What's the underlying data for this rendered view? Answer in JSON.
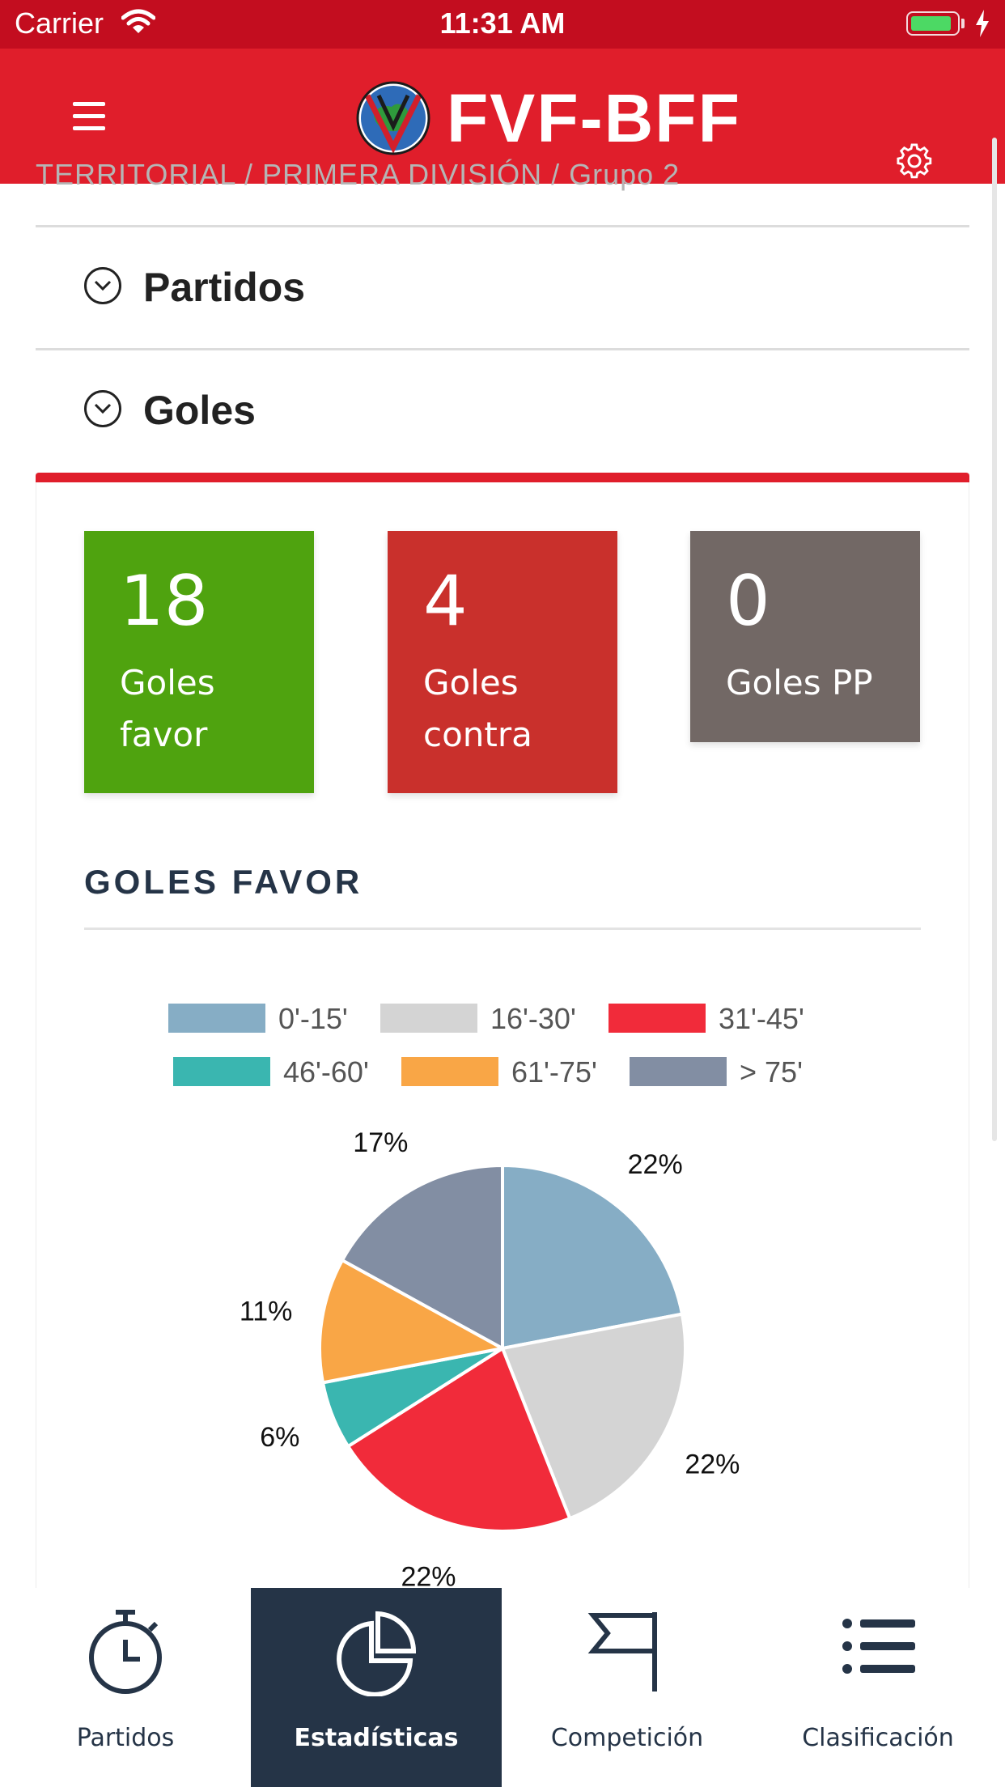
{
  "status_bar": {
    "carrier": "Carrier",
    "time": "11:31 AM",
    "battery_level": 0.9
  },
  "header": {
    "brand": "FVF-BFF"
  },
  "breadcrumb": "TERRITORIAL / PRIMERA DIVISIÓN / Grupo 2",
  "sections": [
    {
      "label": "Partidos"
    },
    {
      "label": "Goles"
    }
  ],
  "stats": [
    {
      "value": "18",
      "label": "Goles favor",
      "color": "#4fa30f"
    },
    {
      "value": "4",
      "label": "Goles contra",
      "color": "#c9302c"
    },
    {
      "value": "0",
      "label": "Goles PP",
      "color": "#726865"
    }
  ],
  "chart_section_title": "GOLES FAVOR",
  "chart_data": {
    "type": "pie",
    "categories": [
      "0'-15'",
      "16'-30'",
      "31'-45'",
      "46'-60'",
      "61'-75'",
      "> 75'"
    ],
    "values": [
      22,
      22,
      22,
      6,
      11,
      17
    ],
    "labels": [
      "22%",
      "22%",
      "22%",
      "6%",
      "11%",
      "17%"
    ],
    "colors": [
      "#86adc5",
      "#d4d4d4",
      "#f12b3a",
      "#3ab6b0",
      "#f9a646",
      "#828ea3"
    ],
    "legend": "top-center"
  },
  "tabs": [
    {
      "label": "Partidos",
      "icon": "stopwatch-icon",
      "active": false
    },
    {
      "label": "Estadísticas",
      "icon": "pie-chart-icon",
      "active": true
    },
    {
      "label": "Competición",
      "icon": "flag-icon",
      "active": false
    },
    {
      "label": "Clasificación",
      "icon": "list-icon",
      "active": false
    }
  ]
}
